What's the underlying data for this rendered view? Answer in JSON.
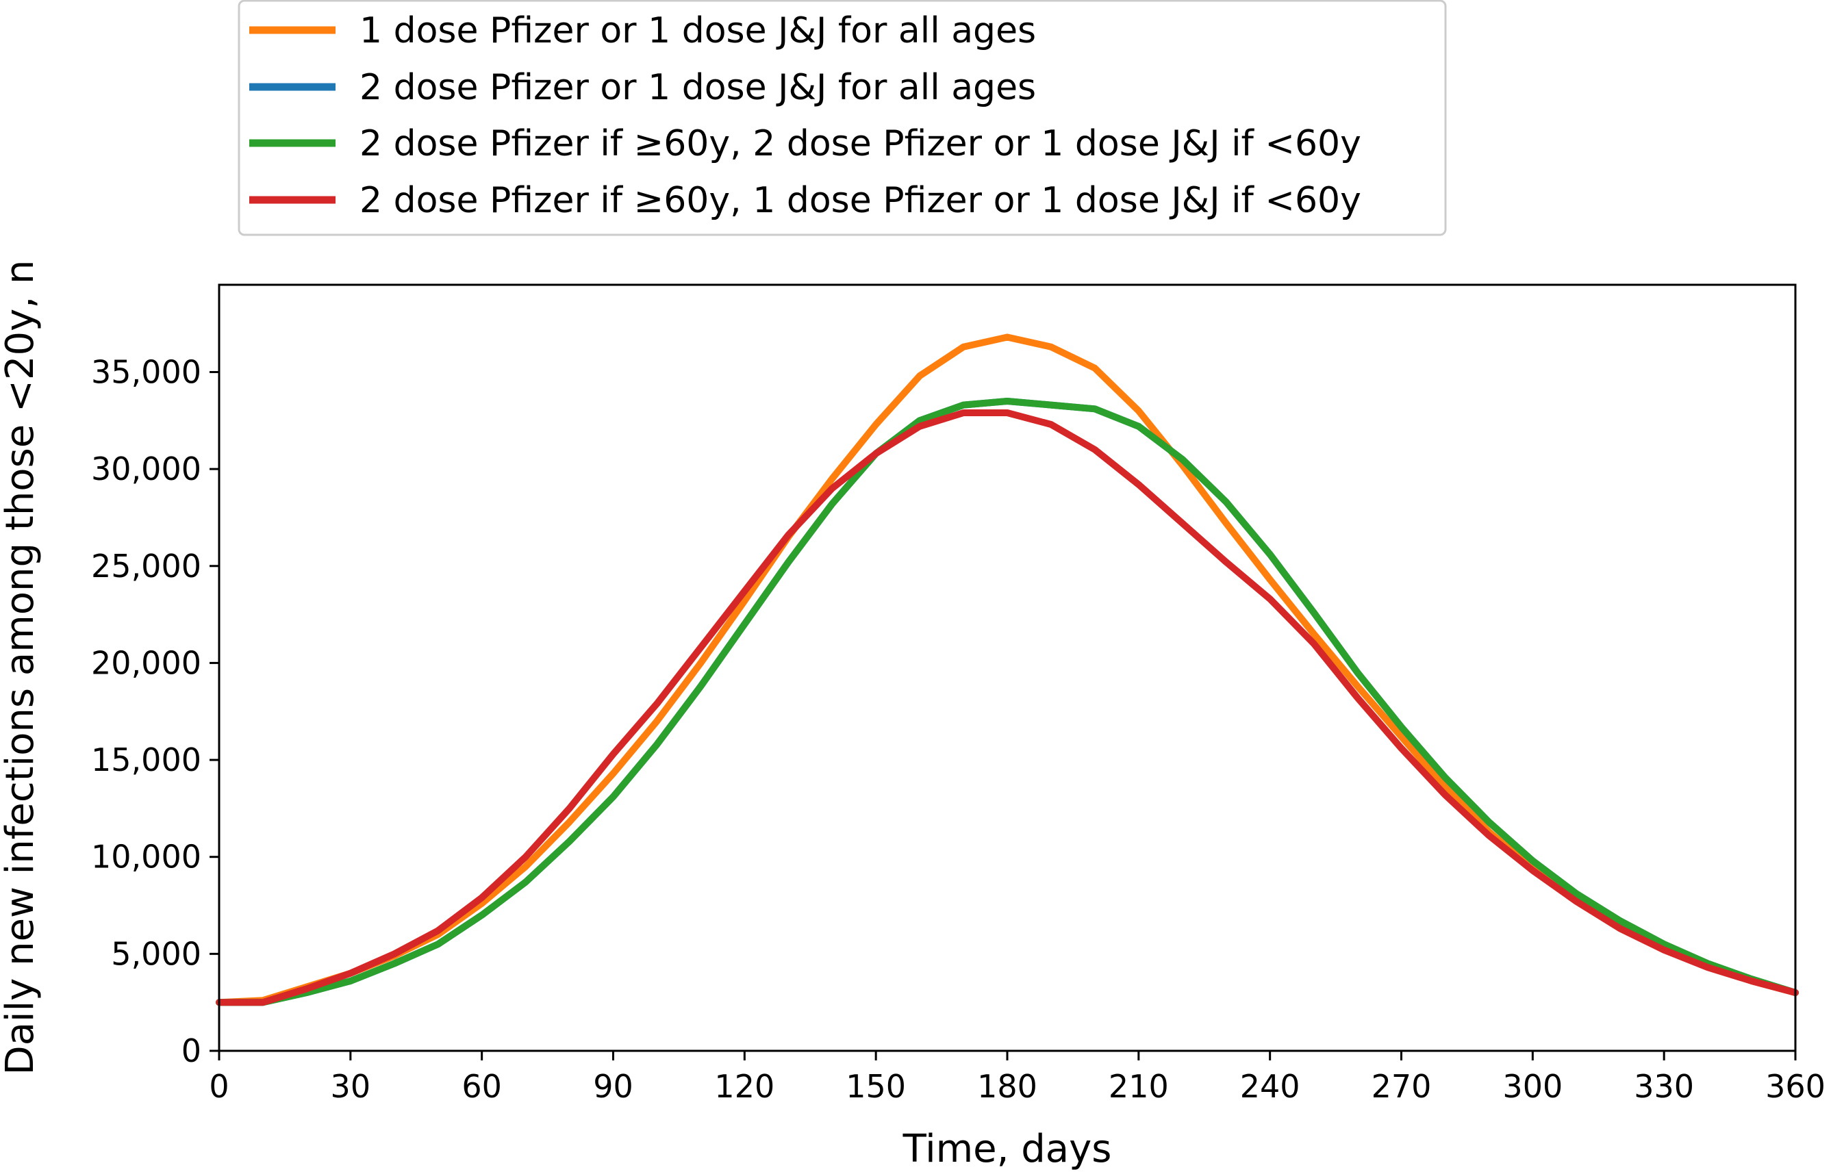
{
  "chart_data": {
    "type": "line",
    "xlabel": "Time, days",
    "ylabel": "Daily new infections among those <20y, n",
    "xlim": [
      0,
      360
    ],
    "ylim": [
      0,
      39500
    ],
    "x_ticks": [
      "0",
      "30",
      "60",
      "90",
      "120",
      "150",
      "180",
      "210",
      "240",
      "270",
      "300",
      "330",
      "360"
    ],
    "y_ticks": [
      "0",
      "5,000",
      "10,000",
      "15,000",
      "20,000",
      "25,000",
      "30,000",
      "35,000"
    ],
    "grid": false,
    "legend_position": "top",
    "x": [
      0,
      10,
      20,
      30,
      40,
      50,
      60,
      70,
      80,
      90,
      100,
      110,
      120,
      130,
      140,
      150,
      160,
      170,
      180,
      190,
      200,
      210,
      220,
      230,
      240,
      250,
      260,
      270,
      280,
      290,
      300,
      310,
      320,
      330,
      340,
      350,
      360
    ],
    "series": [
      {
        "name": "1 dose Pfizer or 1 dose J&J for all ages",
        "color": "#ff7f0e",
        "values": [
          2500,
          2600,
          3300,
          4000,
          4900,
          6000,
          7600,
          9500,
          11800,
          14300,
          17000,
          20000,
          23200,
          26500,
          29500,
          32300,
          34800,
          36300,
          36800,
          36300,
          35200,
          33000,
          30200,
          27200,
          24300,
          21500,
          18800,
          16200,
          13600,
          11300,
          9400,
          7800,
          6400,
          5300,
          4400,
          3600,
          3000
        ]
      },
      {
        "name": "2 dose Pfizer or 1 dose J&J for all ages",
        "color": "#1f77b4",
        "values": [
          2500,
          2500,
          3000,
          3600,
          4500,
          5500,
          7000,
          8700,
          10800,
          13100,
          15800,
          18800,
          22000,
          25200,
          28200,
          30800,
          32500,
          33300,
          33500,
          33300,
          33100,
          32200,
          30500,
          28300,
          25600,
          22600,
          19500,
          16700,
          14100,
          11800,
          9800,
          8100,
          6700,
          5500,
          4500,
          3700,
          3000
        ]
      },
      {
        "name": "2 dose Pfizer if ≥60y, 2 dose Pfizer or 1 dose J&J if <60y",
        "color": "#2ca02c",
        "values": [
          2500,
          2500,
          3000,
          3600,
          4500,
          5500,
          7000,
          8700,
          10800,
          13100,
          15800,
          18800,
          22000,
          25200,
          28200,
          30800,
          32500,
          33300,
          33500,
          33300,
          33100,
          32200,
          30500,
          28300,
          25600,
          22600,
          19500,
          16700,
          14100,
          11800,
          9800,
          8100,
          6700,
          5500,
          4500,
          3700,
          3000
        ]
      },
      {
        "name": "2 dose Pfizer if ≥60y, 1 dose Pfizer or 1 dose J&J if <60y",
        "color": "#d62728",
        "values": [
          2500,
          2500,
          3200,
          4000,
          5000,
          6200,
          7900,
          10000,
          12500,
          15300,
          17900,
          20800,
          23700,
          26600,
          29000,
          30800,
          32200,
          32900,
          32900,
          32300,
          31000,
          29200,
          27200,
          25200,
          23300,
          21000,
          18200,
          15600,
          13200,
          11100,
          9300,
          7700,
          6300,
          5200,
          4300,
          3600,
          3000
        ]
      }
    ]
  }
}
